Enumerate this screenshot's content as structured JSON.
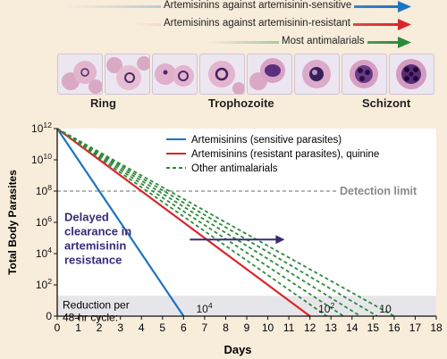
{
  "legend_top": {
    "items": [
      {
        "label": "Artemisinins against artemisinin-sensitive",
        "color": "#1e74c2"
      },
      {
        "label": "Artemisinins against artemisinin-resistant",
        "color": "#d9262c"
      },
      {
        "label": "Most antimalarials",
        "color": "#2f8a3a"
      }
    ]
  },
  "stages": [
    "Ring",
    "Trophozoite",
    "Schizont"
  ],
  "cells": [
    {
      "name": "ring-cell-1",
      "icon": "infected-red-cell-icon"
    },
    {
      "name": "ring-cell-2",
      "icon": "infected-red-cell-icon"
    },
    {
      "name": "ring-cell-3",
      "icon": "infected-red-cell-icon"
    },
    {
      "name": "trophozoite-cell-1",
      "icon": "infected-red-cell-icon"
    },
    {
      "name": "trophozoite-cell-2",
      "icon": "infected-red-cell-icon"
    },
    {
      "name": "trophozoite-cell-3",
      "icon": "infected-red-cell-icon"
    },
    {
      "name": "schizont-cell-1",
      "icon": "infected-red-cell-icon"
    },
    {
      "name": "schizont-cell-2",
      "icon": "infected-red-cell-icon"
    }
  ],
  "chart_data": {
    "type": "line",
    "xlabel": "Days",
    "ylabel": "Total Body Parasites",
    "xlim": [
      0,
      18
    ],
    "x_ticks": [
      0,
      1,
      2,
      3,
      4,
      5,
      6,
      7,
      8,
      9,
      10,
      11,
      12,
      13,
      14,
      15,
      16,
      17,
      18
    ],
    "ylim_log10": [
      0,
      12
    ],
    "y_ticks": [
      {
        "value_log10": 12,
        "base": "10",
        "exp": "12"
      },
      {
        "value_log10": 10,
        "base": "10",
        "exp": "10"
      },
      {
        "value_log10": 8,
        "base": "10",
        "exp": "8"
      },
      {
        "value_log10": 6,
        "base": "10",
        "exp": "6"
      },
      {
        "value_log10": 4,
        "base": "10",
        "exp": "4"
      },
      {
        "value_log10": 2,
        "base": "10",
        "exp": "2"
      },
      {
        "value_log10": 0,
        "base": "0",
        "exp": ""
      }
    ],
    "series": [
      {
        "name": "Artemisinins (sensitive parasites)",
        "color": "#1e74c2",
        "style": "solid",
        "points": [
          [
            0,
            12
          ],
          [
            6,
            0
          ]
        ]
      },
      {
        "name": "Artemisinins (resistant parasites), quinine",
        "color": "#d9262c",
        "style": "solid",
        "points": [
          [
            0,
            12
          ],
          [
            12,
            0
          ]
        ]
      },
      {
        "name": "Other antimalarials",
        "color": "#2f8a3a",
        "style": "dashed",
        "lines": [
          [
            [
              0,
              12
            ],
            [
              12.8,
              0
            ]
          ],
          [
            [
              0,
              12
            ],
            [
              13.6,
              0
            ]
          ],
          [
            [
              0,
              12
            ],
            [
              14.4,
              0
            ]
          ],
          [
            [
              0,
              12
            ],
            [
              15.2,
              0
            ]
          ],
          [
            [
              0,
              12
            ],
            [
              16,
              0
            ]
          ]
        ]
      }
    ],
    "detection_limit": {
      "value_log10": 8,
      "label": "Detection limit"
    },
    "reduction_band": {
      "from_log10": 0,
      "to_log10": 1.3
    },
    "annotations": {
      "delayed": [
        "Delayed",
        "clearance in",
        "artemisinin",
        "resistance"
      ],
      "delayed_color": "#3a2a7a",
      "delayed_arrow": {
        "from_x_day": 6.3,
        "to_x_day": 10.8,
        "at_log10": 4.9
      },
      "reduction_text": [
        "Reduction per",
        "48-hr cycle:"
      ],
      "reduction_labels": [
        {
          "base": "10",
          "exp": "4",
          "x_day": 6.6
        },
        {
          "base": "10",
          "exp": "2",
          "x_day": 12.4
        },
        {
          "base": "10",
          "exp": "",
          "x_day": 15.3
        }
      ]
    }
  }
}
